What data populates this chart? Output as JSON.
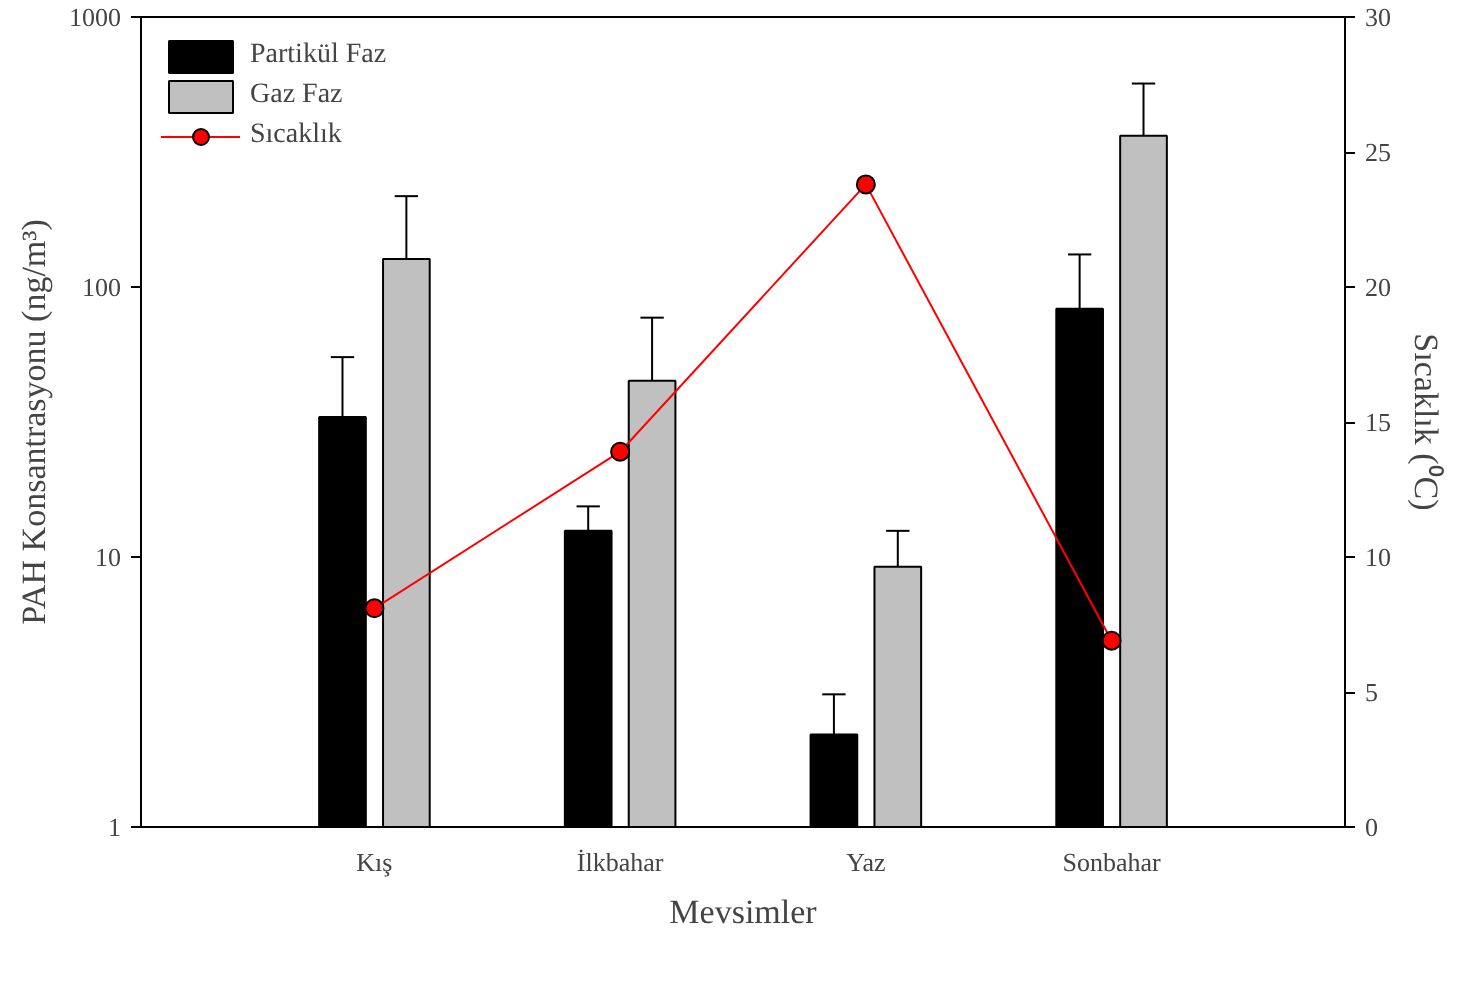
{
  "chart_data": {
    "type": "bar",
    "xlabel": "Mevsimler",
    "ylabel": "PAH Konsantrasyonu (ng/m³)",
    "y2label": "Sıcaklık (⁰C)",
    "categories": [
      "Kış",
      "İlkbahar",
      "Yaz",
      "Sonbahar"
    ],
    "series": [
      {
        "name": "Partikül Faz",
        "color": "#000000",
        "values": [
          33,
          12.5,
          2.2,
          83
        ],
        "errors": [
          [
            33,
            55
          ],
          [
            12.5,
            15.4
          ],
          [
            2.2,
            3.1
          ],
          [
            83,
            132
          ]
        ]
      },
      {
        "name": "Gaz Faz",
        "color": "#c0c0c0",
        "values": [
          127,
          45,
          9.2,
          363
        ],
        "errors": [
          [
            127,
            217
          ],
          [
            45,
            77
          ],
          [
            9.2,
            12.5
          ],
          [
            363,
            567
          ]
        ]
      },
      {
        "name": "Sıcaklık",
        "type": "line",
        "axis": "y2",
        "color": "#ff0000",
        "marker": "circle",
        "values": [
          8.1,
          13.9,
          23.8,
          6.9
        ]
      }
    ],
    "log": "y",
    "ylim": [
      1,
      1000
    ],
    "yticks": [
      1,
      10,
      100,
      1000
    ],
    "y2lim": [
      0,
      30
    ],
    "y2ticks": [
      0,
      5,
      10,
      15,
      20,
      25,
      30
    ],
    "grid": false,
    "legend": "top left"
  }
}
